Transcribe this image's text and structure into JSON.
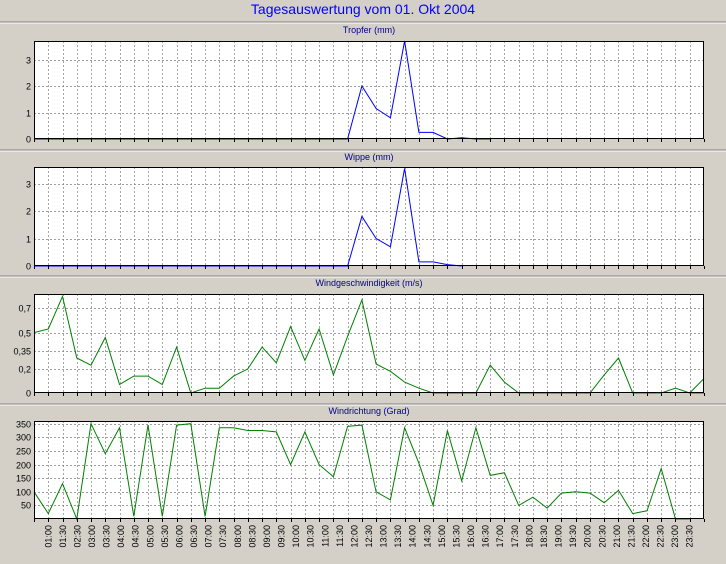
{
  "title": "Tagesauswertung vom 01. Okt 2004",
  "colors": {
    "background": "#d4d0c8",
    "plot_background": "#ffffff",
    "grid": "#808080",
    "series_blue": "#0000ff",
    "series_green": "#008000",
    "title_blue": "#0000ff",
    "panel_title": "#00008b"
  },
  "chart_data": [
    {
      "type": "line",
      "title": "Tropfer (mm)",
      "ylim": [
        0,
        3.7
      ],
      "yticks": [
        0,
        1,
        2,
        3
      ],
      "ytick_labels": [
        "0",
        "1",
        "2",
        "3"
      ],
      "x_range": [
        0,
        47
      ],
      "grid": true,
      "series": [
        {
          "color": "#0000ff",
          "x": [
            0,
            22,
            23,
            24,
            25,
            26,
            27,
            28,
            29,
            30,
            31,
            32
          ],
          "y": [
            0,
            0,
            2.0,
            1.15,
            0.8,
            3.7,
            0.25,
            0.25,
            0.0,
            0.05,
            0,
            0
          ]
        }
      ]
    },
    {
      "type": "line",
      "title": "Wippe (mm)",
      "ylim": [
        0,
        3.6
      ],
      "yticks": [
        0,
        1,
        2,
        3
      ],
      "ytick_labels": [
        "0",
        "1",
        "2",
        "3"
      ],
      "x_range": [
        0,
        47
      ],
      "grid": true,
      "series": [
        {
          "color": "#0000ff",
          "x": [
            0,
            22,
            23,
            24,
            25,
            26,
            27,
            28,
            29,
            30
          ],
          "y": [
            0,
            0,
            1.8,
            1.0,
            0.7,
            3.55,
            0.15,
            0.15,
            0.05,
            0
          ]
        }
      ]
    },
    {
      "type": "line",
      "title": "Windgeschwindigkeit (m/s)",
      "ylim": [
        0,
        0.82
      ],
      "yticks": [
        0,
        0.2,
        0.35,
        0.5,
        0.7
      ],
      "ytick_labels": [
        "0",
        "0,2",
        "0,35",
        "0,5",
        "0,7"
      ],
      "x_range": [
        0,
        47
      ],
      "grid": true,
      "series": [
        {
          "color": "#008000",
          "x": [
            0,
            1,
            2,
            3,
            4,
            5,
            6,
            7,
            8,
            9,
            10,
            11,
            12,
            13,
            14,
            15,
            16,
            17,
            18,
            19,
            20,
            21,
            22,
            23,
            24,
            25,
            26,
            27,
            28,
            29,
            30,
            31,
            32,
            33,
            34,
            35,
            36,
            37,
            38,
            39,
            40,
            41,
            42,
            43,
            44,
            45,
            46,
            47
          ],
          "y": [
            0.5,
            0.53,
            0.8,
            0.29,
            0.23,
            0.46,
            0.07,
            0.14,
            0.14,
            0.07,
            0.38,
            0.0,
            0.04,
            0.04,
            0.14,
            0.2,
            0.38,
            0.25,
            0.55,
            0.27,
            0.53,
            0.15,
            0.47,
            0.77,
            0.24,
            0.18,
            0.09,
            0.04,
            0.0,
            0.0,
            0.0,
            0.0,
            0.23,
            0.09,
            0.0,
            0.0,
            0.0,
            0.0,
            0.0,
            0.0,
            0.15,
            0.29,
            0.0,
            0.0,
            0.0,
            0.04,
            0.0,
            0.0
          ]
        },
        {
          "color": "#008000",
          "x": [
            46,
            47
          ],
          "y": [
            0.0,
            0.12
          ]
        }
      ]
    },
    {
      "type": "line",
      "title": "Windrichtung (Grad)",
      "ylim": [
        0,
        360
      ],
      "yticks": [
        50,
        100,
        150,
        200,
        250,
        300,
        350
      ],
      "ytick_labels": [
        "50",
        "100",
        "150",
        "200",
        "250",
        "300",
        "350"
      ],
      "x_range": [
        0,
        47
      ],
      "grid": true,
      "x_tick_labels": [
        "01:00",
        "01:30",
        "02:30",
        "03:00",
        "03:30",
        "04:00",
        "04:30",
        "05:00",
        "05:30",
        "06:00",
        "06:30",
        "07:00",
        "07:30",
        "08:00",
        "08:30",
        "09:00",
        "09:30",
        "10:00",
        "10:30",
        "11:00",
        "11:30",
        "12:00",
        "12:30",
        "13:00",
        "13:30",
        "14:00",
        "14:30",
        "15:00",
        "15:30",
        "16:00",
        "16:30",
        "17:00",
        "17:30",
        "18:00",
        "18:30",
        "19:00",
        "19:30",
        "20:00",
        "20:30",
        "21:00",
        "21:30",
        "22:00",
        "22:30",
        "23:00",
        "23:30"
      ],
      "series": [
        {
          "color": "#008000",
          "x": [
            0,
            1,
            2,
            3,
            4,
            5,
            6,
            7,
            8,
            9,
            10,
            11,
            12,
            13,
            14,
            15,
            16,
            17,
            18,
            19,
            20,
            21,
            22,
            23,
            24,
            25,
            26,
            27,
            28,
            29,
            30,
            31,
            32,
            33,
            34,
            35,
            36,
            37,
            38,
            39,
            40,
            41,
            42,
            43,
            44,
            45,
            46
          ],
          "y": [
            100,
            20,
            130,
            0,
            350,
            240,
            335,
            10,
            345,
            10,
            345,
            350,
            10,
            335,
            335,
            325,
            325,
            320,
            200,
            320,
            200,
            155,
            340,
            345,
            100,
            70,
            335,
            205,
            50,
            325,
            140,
            335,
            160,
            170,
            50,
            80,
            40,
            95,
            100,
            95,
            60,
            105,
            20,
            30,
            185,
            0,
            0
          ]
        }
      ]
    }
  ]
}
